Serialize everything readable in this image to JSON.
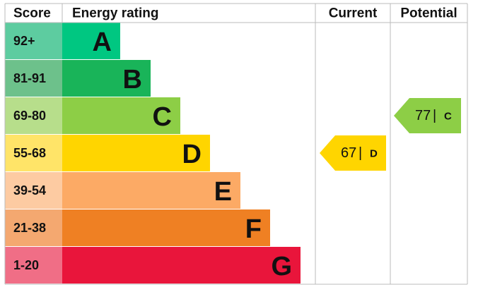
{
  "header": {
    "score": "Score",
    "rating": "Energy rating",
    "current": "Current",
    "potential": "Potential"
  },
  "bands": [
    {
      "score": "92+",
      "letter": "A",
      "color": "#00c781",
      "score_color": "#5dcca0"
    },
    {
      "score": "81-91",
      "letter": "B",
      "color": "#19b459",
      "score_color": "#6dc18b"
    },
    {
      "score": "69-80",
      "letter": "C",
      "color": "#8dce46",
      "score_color": "#b7de8b"
    },
    {
      "score": "55-68",
      "letter": "D",
      "color": "#ffd500",
      "score_color": "#ffe468"
    },
    {
      "score": "39-54",
      "letter": "E",
      "color": "#fcaa65",
      "score_color": "#fdcba2"
    },
    {
      "score": "21-38",
      "letter": "F",
      "color": "#ef8023",
      "score_color": "#f4a870"
    },
    {
      "score": "1-20",
      "letter": "G",
      "color": "#e9153b",
      "score_color": "#f06e86"
    }
  ],
  "current": {
    "value": 67,
    "separator": "|",
    "letter": "D"
  },
  "potential": {
    "value": 77,
    "separator": "|",
    "letter": "C"
  }
}
